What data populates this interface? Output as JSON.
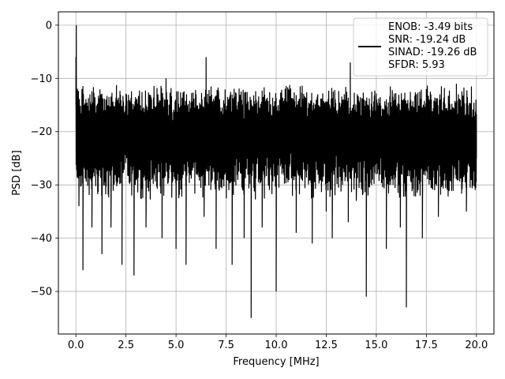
{
  "chart_data": {
    "type": "line",
    "title": "",
    "xlabel": "Frequency [MHz]",
    "ylabel": "PSD [dB]",
    "xlim": [
      -0.875,
      20.875
    ],
    "ylim": [
      -58,
      2.5
    ],
    "grid": true,
    "legend_position": "top-right",
    "x_ticks": [
      "0.0",
      "2.5",
      "5.0",
      "7.5",
      "10.0",
      "12.5",
      "15.0",
      "17.5",
      "20.0"
    ],
    "x_tick_values": [
      0,
      2.5,
      5,
      7.5,
      10,
      12.5,
      15,
      17.5,
      20
    ],
    "y_ticks": [
      "0",
      "−10",
      "−20",
      "−30",
      "−40",
      "−50"
    ],
    "y_tick_values": [
      0,
      -10,
      -20,
      -30,
      -40,
      -50
    ],
    "legend": {
      "lines": [
        "ENOB: -3.49 bits",
        "SNR: -19.24 dB",
        "SINAD: -19.26 dB",
        "SFDR: 5.93"
      ]
    },
    "series": [
      {
        "color": "#000000",
        "x_range": [
          0,
          20
        ],
        "noise_upper_typical": -13,
        "noise_lower_typical": -30,
        "x": [
          0.0,
          0.02,
          0.05,
          0.1,
          0.15,
          0.2,
          0.3,
          0.35,
          0.5,
          0.7,
          0.8,
          1.1,
          1.3,
          1.5,
          1.75,
          2.0,
          2.3,
          2.5,
          2.9,
          3.2,
          3.5,
          4.1,
          4.3,
          4.5,
          5.0,
          5.2,
          5.5,
          6.0,
          6.4,
          6.5,
          7.0,
          7.6,
          7.8,
          8.1,
          8.4,
          8.75,
          9.0,
          9.3,
          9.6,
          10.0,
          10.6,
          11.0,
          11.4,
          11.8,
          12.0,
          12.5,
          12.8,
          13.4,
          13.6,
          13.7,
          14.0,
          14.5,
          14.9,
          15.5,
          15.7,
          16.2,
          16.5,
          16.8,
          17.3,
          17.5,
          18.1,
          18.6,
          19.0,
          19.5,
          20.0
        ],
        "y": [
          -6,
          0,
          -15,
          -25,
          -34,
          -20,
          -12,
          -46,
          -25,
          -13,
          -38,
          -24,
          -43,
          -14,
          -38,
          -22,
          -45,
          -13,
          -47,
          -15,
          -38,
          -13,
          -40,
          -10,
          -42,
          -24,
          -45,
          -13,
          -36,
          -6,
          -42,
          -28,
          -45,
          -15,
          -40,
          -55,
          -14,
          -38,
          -23,
          -50,
          -12,
          -39,
          -26,
          -41,
          -14,
          -35,
          -40,
          -13,
          -37,
          -7,
          -33,
          -51,
          -18,
          -42,
          -13,
          -38,
          -53,
          -18,
          -40,
          -12,
          -36,
          -24,
          -11,
          -35,
          -25
        ]
      }
    ]
  }
}
